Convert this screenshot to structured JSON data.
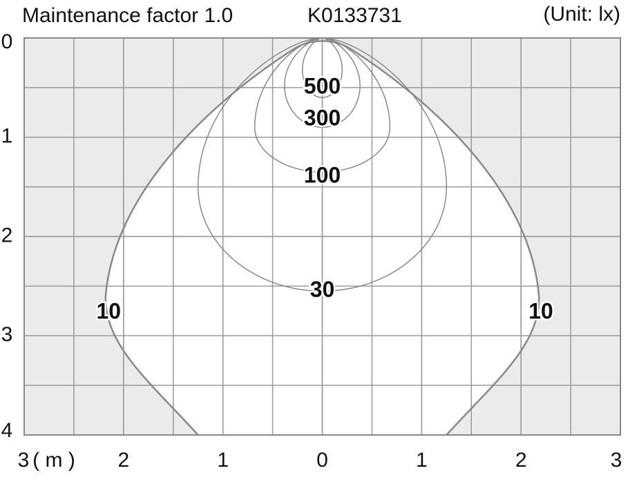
{
  "chart_data": {
    "type": "isolux",
    "title": "Maintenance factor 1.0",
    "subtitle": "K0133731",
    "unit_label": "(Unit: lx)",
    "xlabel": "( m )",
    "xlim": [
      -3,
      3
    ],
    "xticks": [
      {
        "value": -3,
        "label": "3"
      },
      {
        "value": -2,
        "label": "2"
      },
      {
        "value": -1,
        "label": "1"
      },
      0,
      1,
      2,
      3
    ],
    "ylim": [
      0,
      4
    ],
    "yticks": [
      0,
      1,
      2,
      3,
      4
    ],
    "grid": true,
    "contours": [
      {
        "level": 500
      },
      {
        "level": 300
      },
      {
        "level": 100
      },
      {
        "level": 30
      },
      {
        "level": 10
      }
    ]
  }
}
